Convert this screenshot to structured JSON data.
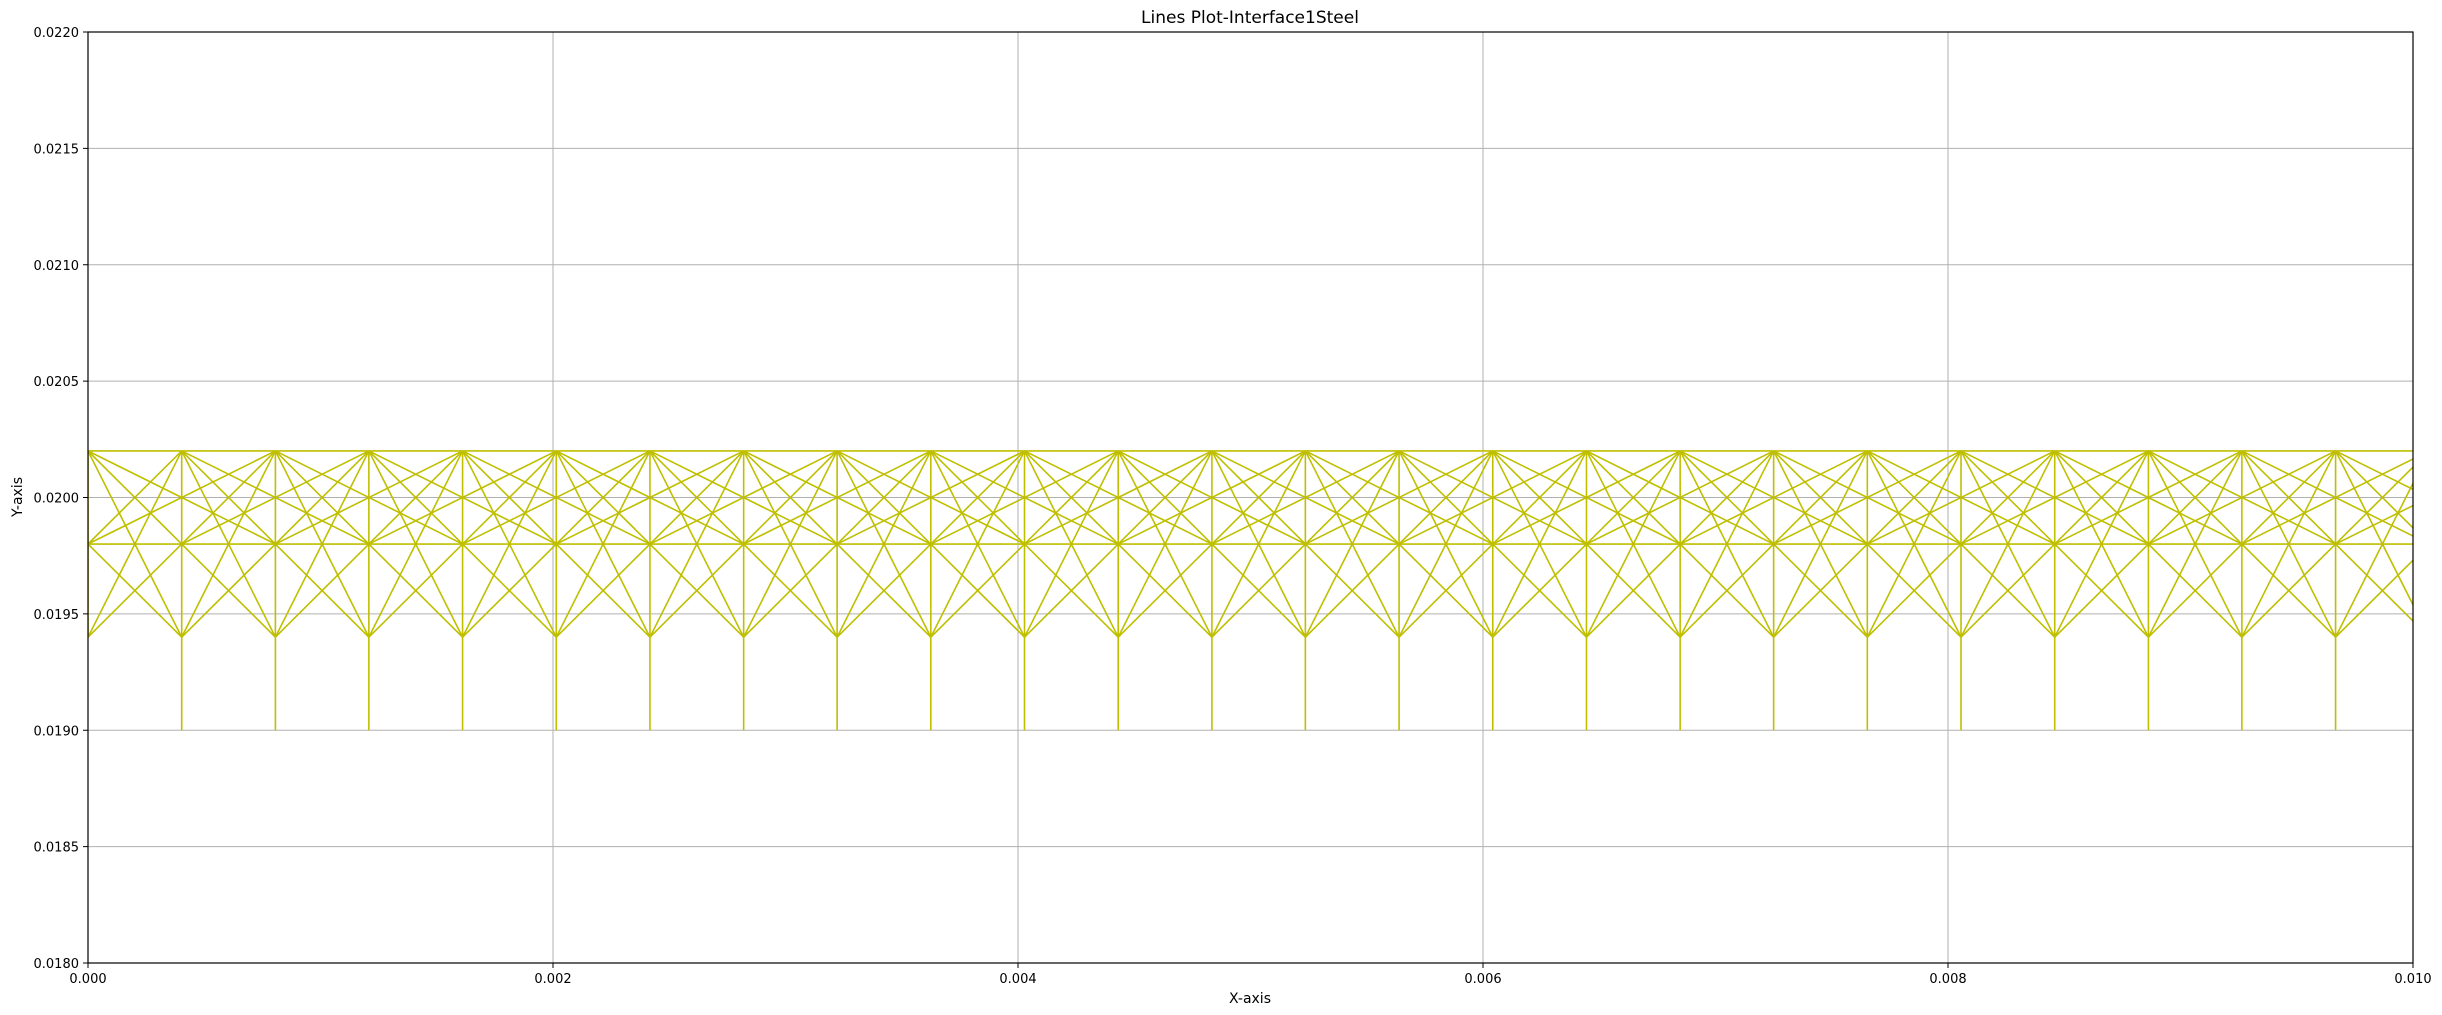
{
  "chart_data": {
    "type": "line",
    "title": "Lines Plot-Interface1Steel",
    "xlabel": "X-axis",
    "ylabel": "Y-axis",
    "xlim": [
      0.0,
      0.01
    ],
    "ylim": [
      0.018,
      0.022
    ],
    "xticks": [
      "0.000",
      "0.002",
      "0.004",
      "0.006",
      "0.008",
      "0.010"
    ],
    "yticks": [
      "0.0180",
      "0.0185",
      "0.0190",
      "0.0195",
      "0.0200",
      "0.0205",
      "0.0210",
      "0.0215",
      "0.0220"
    ],
    "grid": true,
    "legend": "none",
    "line_color": "#bfbf00",
    "series": [
      {
        "node_x": [
          0.0,
          0.000403,
          0.000806,
          0.001208,
          0.001611,
          0.002014,
          0.002417,
          0.00282,
          0.003222,
          0.003625,
          0.004028,
          0.004431,
          0.004834,
          0.005236,
          0.005639,
          0.006042,
          0.006445,
          0.006848,
          0.00725,
          0.007653,
          0.008056,
          0.008459,
          0.008862,
          0.009264,
          0.009667
        ],
        "levels_y": [
          0.0202,
          0.02,
          0.0198,
          0.0194,
          0.019
        ],
        "segments": [
          {
            "from": [
              "x",
              0.0202
            ],
            "to": [
              "x+1",
              0.0202
            ]
          },
          {
            "from": [
              "x",
              0.0202
            ],
            "to": [
              "x+1",
              0.0198
            ]
          },
          {
            "from": [
              "x",
              0.0198
            ],
            "to": [
              "x+1",
              0.0202
            ]
          },
          {
            "from": [
              "x",
              0.0198
            ],
            "to": [
              "x+1",
              0.0198
            ]
          },
          {
            "from": [
              "x",
              0.0194
            ],
            "to": [
              "x+1",
              0.0202
            ]
          },
          {
            "from": [
              "x",
              0.0202
            ],
            "to": [
              "x+1",
              0.0194
            ]
          },
          {
            "from": [
              "x",
              0.0198
            ],
            "to": [
              "x+1",
              0.0194
            ]
          },
          {
            "from": [
              "x",
              0.0194
            ],
            "to": [
              "x+1",
              0.0198
            ]
          },
          {
            "from": [
              "x",
              0.0202
            ],
            "to": [
              "x+2",
              0.0198
            ]
          },
          {
            "from": [
              "x",
              0.0198
            ],
            "to": [
              "x+2",
              0.0202
            ]
          },
          {
            "from": [
              "x",
              0.0202
            ],
            "to": [
              "x",
              0.019
            ]
          }
        ]
      }
    ]
  }
}
